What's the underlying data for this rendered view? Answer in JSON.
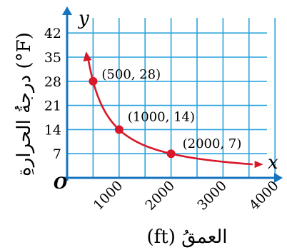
{
  "chart_data": {
    "type": "line",
    "x_name": "x",
    "y_name": "y",
    "origin_label": "O",
    "xlabel": "(ft) العمقُ",
    "ylabel": "درجةُ الحرارةِ (°F)",
    "x_ticks": [
      "1000",
      "2000",
      "3000",
      "4000"
    ],
    "y_ticks": [
      "7",
      "14",
      "21",
      "28",
      "35",
      "42"
    ],
    "xlim": [
      0,
      4500
    ],
    "ylim": [
      0,
      49
    ],
    "grid": true,
    "series_points": [
      {
        "x": 500,
        "y": 28,
        "label": "(500, 28)"
      },
      {
        "x": 1000,
        "y": 14,
        "label": "(1000, 14)"
      },
      {
        "x": 2000,
        "y": 7,
        "label": "(2000, 7)"
      }
    ],
    "curve": "y = 14000 / x",
    "colors": {
      "grid": "#29a3dc",
      "axis": "#1474bf",
      "curve": "#d8182a"
    }
  }
}
